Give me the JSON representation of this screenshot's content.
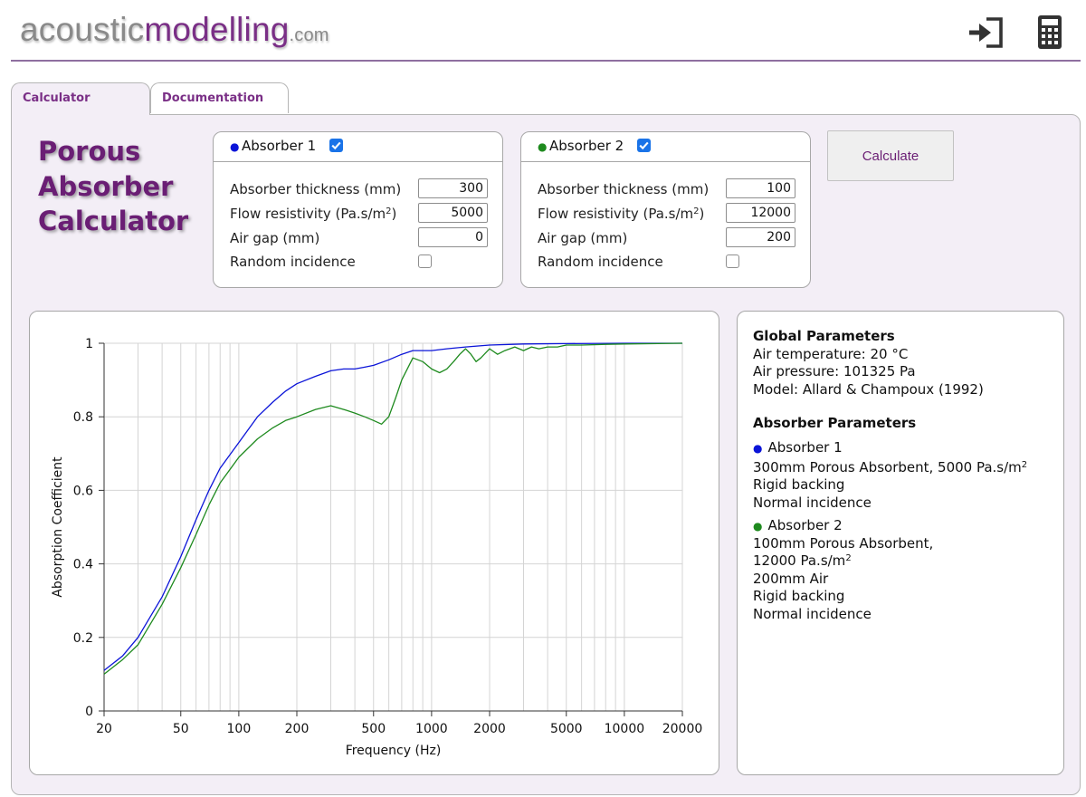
{
  "logo": {
    "main": "acoustic",
    "accent": "modelling",
    "tld": ".com"
  },
  "header": {
    "icons": [
      "sign-in-icon",
      "calculator-icon"
    ]
  },
  "tabs": [
    {
      "label": "Calculator"
    },
    {
      "label": "Documentation"
    }
  ],
  "title": {
    "line1": "Porous",
    "line2": "Absorber",
    "line3": "Calculator"
  },
  "absorber1": {
    "label": "Absorber 1",
    "color": "#0b14d8",
    "enabled": true,
    "thickness_label": "Absorber thickness (mm)",
    "thickness": "300",
    "flow_label": "Flow resistivity (Pa.s/m",
    "flow_sup": "2",
    "flow_close": ")",
    "flow": "5000",
    "airgap_label": "Air gap (mm)",
    "airgap": "0",
    "random_label": "Random incidence",
    "random": false
  },
  "absorber2": {
    "label": "Absorber 2",
    "color": "#1e8a1e",
    "enabled": true,
    "thickness_label": "Absorber thickness (mm)",
    "thickness": "100",
    "flow_label": "Flow resistivity (Pa.s/m",
    "flow_sup": "2",
    "flow_close": ")",
    "flow": "12000",
    "airgap_label": "Air gap (mm)",
    "airgap": "200",
    "random_label": "Random incidence",
    "random": false
  },
  "calculate_button": "Calculate",
  "info": {
    "global_heading": "Global Parameters",
    "air_temperature": "Air temperature: 20 °C",
    "air_pressure": "Air pressure: 101325 Pa",
    "model": "Model: Allard & Champoux (1992)",
    "absorber_heading": "Absorber Parameters",
    "abs1": {
      "name": "Absorber 1",
      "l1": "300mm Porous Absorbent, 5000 Pa.s/m",
      "l1_sup": "2",
      "l2": "Rigid backing",
      "l3": "Normal incidence"
    },
    "abs2": {
      "name": "Absorber 2",
      "l1": "100mm Porous Absorbent,",
      "l2": "12000 Pa.s/m",
      "l2_sup": "2",
      "l3": "200mm Air",
      "l4": "Rigid backing",
      "l5": "Normal incidence"
    }
  },
  "chart_data": {
    "type": "line",
    "xlabel": "Frequency (Hz)",
    "ylabel": "Absorption Coefficient",
    "x_scale": "log",
    "xlim": [
      20,
      20000
    ],
    "ylim": [
      0,
      1
    ],
    "x_ticks": [
      20,
      50,
      100,
      200,
      500,
      1000,
      2000,
      5000,
      10000,
      20000
    ],
    "y_ticks": [
      0,
      0.2,
      0.4,
      0.6,
      0.8,
      1
    ],
    "grid": true,
    "legend": "none",
    "series": [
      {
        "name": "Absorber 1",
        "color": "#0b14d8",
        "points": [
          [
            20,
            0.11
          ],
          [
            25,
            0.15
          ],
          [
            30,
            0.2
          ],
          [
            40,
            0.31
          ],
          [
            50,
            0.42
          ],
          [
            60,
            0.52
          ],
          [
            70,
            0.6
          ],
          [
            80,
            0.66
          ],
          [
            100,
            0.73
          ],
          [
            125,
            0.8
          ],
          [
            150,
            0.84
          ],
          [
            175,
            0.87
          ],
          [
            200,
            0.89
          ],
          [
            250,
            0.91
          ],
          [
            300,
            0.925
          ],
          [
            350,
            0.93
          ],
          [
            400,
            0.93
          ],
          [
            450,
            0.935
          ],
          [
            500,
            0.94
          ],
          [
            600,
            0.955
          ],
          [
            700,
            0.97
          ],
          [
            800,
            0.98
          ],
          [
            1000,
            0.98
          ],
          [
            1200,
            0.985
          ],
          [
            1500,
            0.99
          ],
          [
            2000,
            0.995
          ],
          [
            3000,
            0.998
          ],
          [
            5000,
            0.999
          ],
          [
            10000,
            1.0
          ],
          [
            20000,
            1.0
          ]
        ]
      },
      {
        "name": "Absorber 2",
        "color": "#1e8a1e",
        "points": [
          [
            20,
            0.1
          ],
          [
            25,
            0.14
          ],
          [
            30,
            0.18
          ],
          [
            40,
            0.29
          ],
          [
            50,
            0.39
          ],
          [
            60,
            0.48
          ],
          [
            70,
            0.56
          ],
          [
            80,
            0.62
          ],
          [
            100,
            0.69
          ],
          [
            125,
            0.74
          ],
          [
            150,
            0.77
          ],
          [
            175,
            0.79
          ],
          [
            200,
            0.8
          ],
          [
            250,
            0.82
          ],
          [
            300,
            0.83
          ],
          [
            350,
            0.82
          ],
          [
            400,
            0.81
          ],
          [
            450,
            0.8
          ],
          [
            500,
            0.79
          ],
          [
            550,
            0.78
          ],
          [
            600,
            0.8
          ],
          [
            650,
            0.85
          ],
          [
            700,
            0.9
          ],
          [
            800,
            0.96
          ],
          [
            900,
            0.95
          ],
          [
            1000,
            0.93
          ],
          [
            1100,
            0.92
          ],
          [
            1200,
            0.93
          ],
          [
            1300,
            0.95
          ],
          [
            1400,
            0.97
          ],
          [
            1500,
            0.985
          ],
          [
            1600,
            0.97
          ],
          [
            1700,
            0.95
          ],
          [
            1800,
            0.96
          ],
          [
            2000,
            0.985
          ],
          [
            2200,
            0.97
          ],
          [
            2400,
            0.98
          ],
          [
            2700,
            0.99
          ],
          [
            3000,
            0.98
          ],
          [
            3300,
            0.99
          ],
          [
            3600,
            0.985
          ],
          [
            4000,
            0.99
          ],
          [
            4500,
            0.99
          ],
          [
            5000,
            0.995
          ],
          [
            6000,
            0.995
          ],
          [
            8000,
            0.997
          ],
          [
            10000,
            0.998
          ],
          [
            20000,
            1.0
          ]
        ]
      }
    ]
  }
}
